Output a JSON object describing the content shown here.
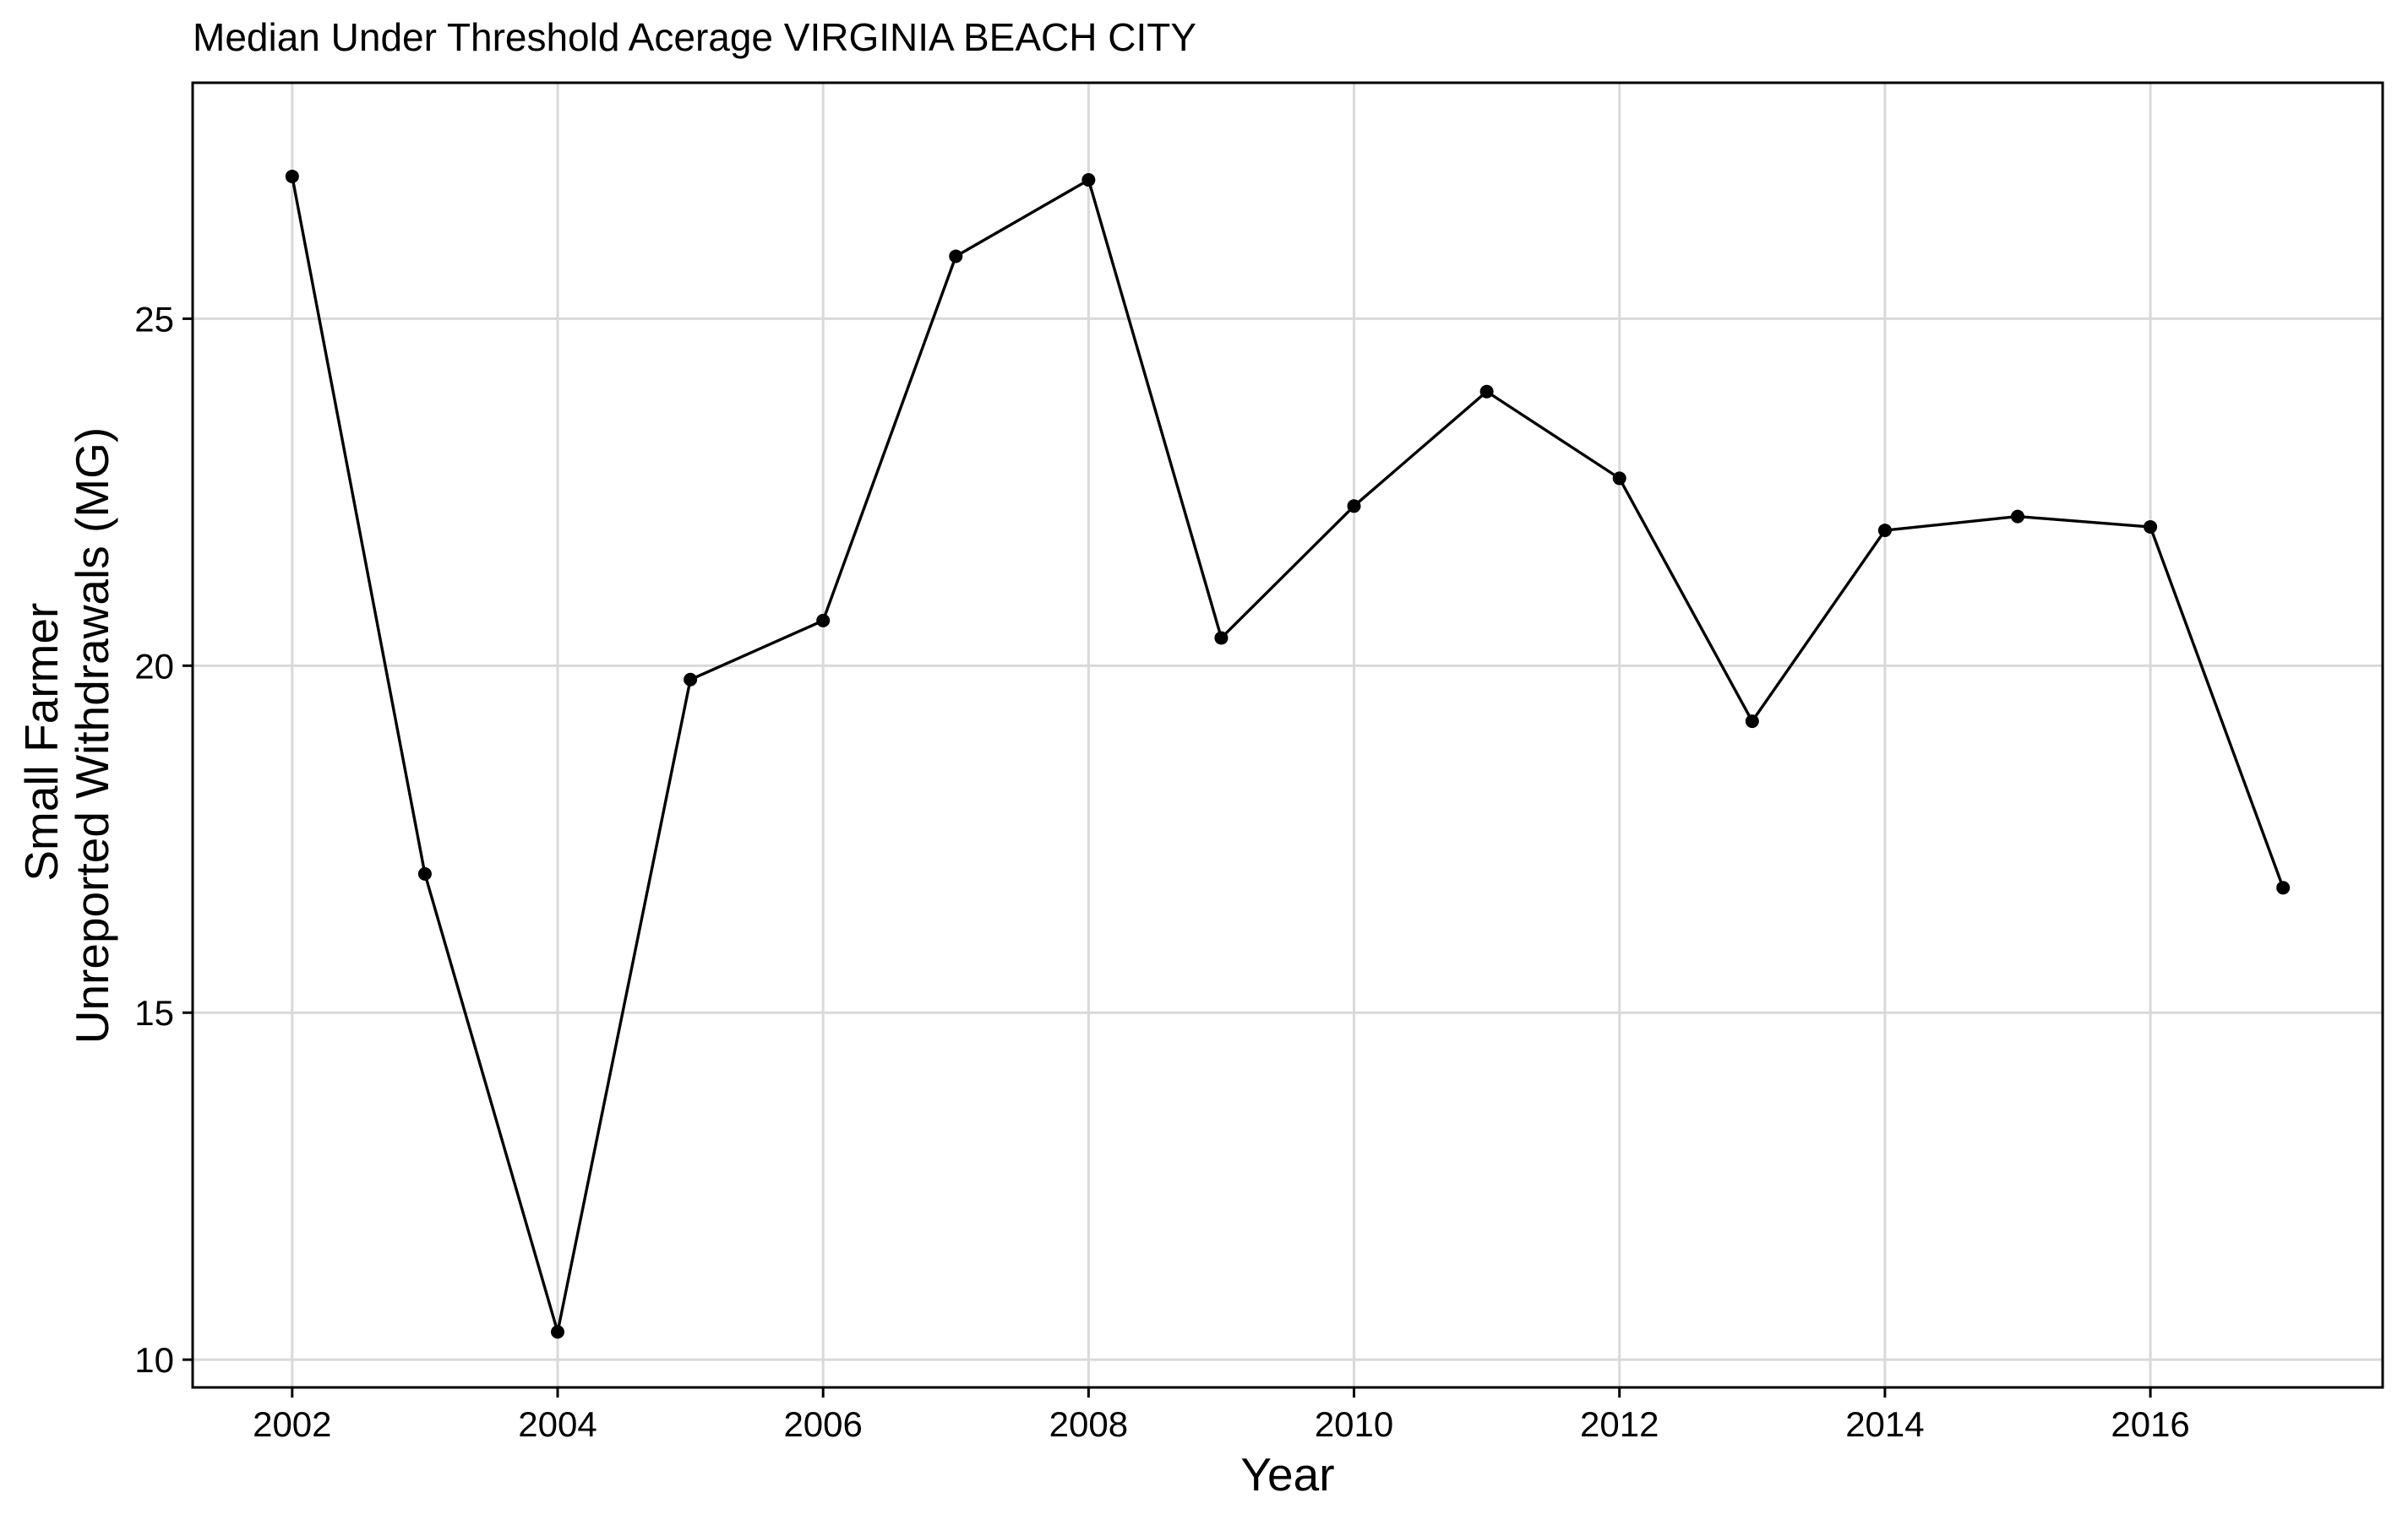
{
  "chart_data": {
    "type": "line",
    "title": "Median Under Threshold Acerage VIRGINIA BEACH CITY",
    "xlabel": "Year",
    "ylabel_lines": [
      "Small Farmer",
      "Unreported Withdrawals (MG)"
    ],
    "x": [
      2002,
      2003,
      2004,
      2005,
      2006,
      2007,
      2008,
      2009,
      2010,
      2011,
      2012,
      2013,
      2014,
      2015,
      2016,
      2017
    ],
    "series": [
      {
        "values": [
          27.05,
          17.0,
          10.4,
          19.8,
          20.65,
          25.9,
          27.0,
          20.4,
          22.3,
          23.95,
          22.7,
          19.2,
          21.95,
          22.15,
          22.0,
          16.8
        ]
      }
    ],
    "xlim": [
      2001.25,
      2017.75
    ],
    "ylim": [
      9.6,
      28.4
    ],
    "xticks": [
      2002,
      2004,
      2006,
      2008,
      2010,
      2012,
      2014,
      2016
    ],
    "xtick_labels": [
      "2002",
      "2004",
      "2006",
      "2008",
      "2010",
      "2012",
      "2014",
      "2016"
    ],
    "yticks": [
      10,
      15,
      20,
      25
    ],
    "ytick_labels": [
      "10",
      "15",
      "20",
      "25"
    ],
    "grid": true,
    "legend": "none",
    "colors": {
      "line": "#000000",
      "grid": "#d9d9d9",
      "background": "#ffffff"
    }
  }
}
